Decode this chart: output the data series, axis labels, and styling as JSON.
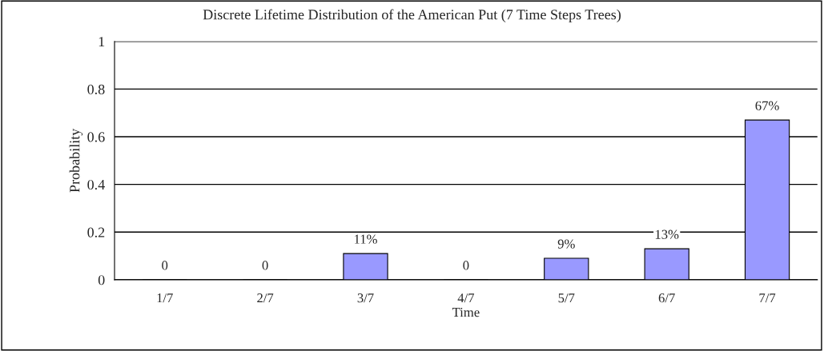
{
  "chart_data": {
    "type": "bar",
    "title": "Discrete Lifetime Distribution of the American Put (7 Time Steps Trees)",
    "xlabel": "Time",
    "ylabel": "Probability",
    "categories": [
      "1/7",
      "2/7",
      "3/7",
      "4/7",
      "5/7",
      "6/7",
      "7/7"
    ],
    "values": [
      0,
      0,
      0.11,
      0,
      0.09,
      0.13,
      0.67
    ],
    "value_labels": [
      "0",
      "0",
      "11%",
      "0",
      "9%",
      "13%",
      "67%"
    ],
    "color": "#9999ff",
    "ylim": [
      0,
      1
    ],
    "yticks": [
      0,
      0.2,
      0.4,
      0.6,
      0.8,
      1
    ],
    "grid": "y",
    "legend": false
  }
}
